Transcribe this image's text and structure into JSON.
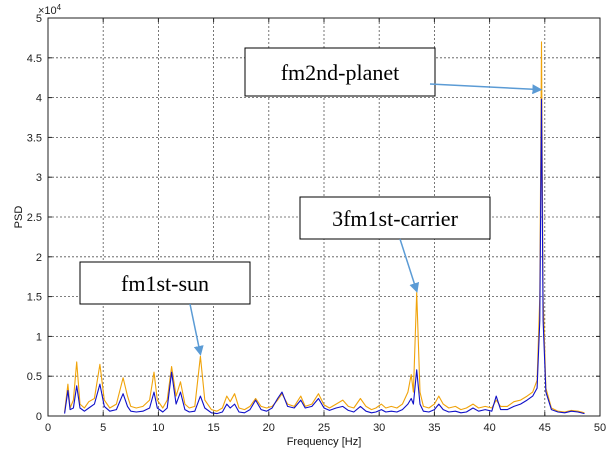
{
  "chart_data": {
    "type": "line",
    "xlabel": "Frequency [Hz]",
    "ylabel": "PSD",
    "exponent_label": "×10",
    "exponent_power": "4",
    "xlim": [
      0,
      50
    ],
    "ylim": [
      0,
      5
    ],
    "xticks": [
      "0",
      "5",
      "10",
      "15",
      "20",
      "25",
      "30",
      "35",
      "40",
      "45",
      "50"
    ],
    "yticks": [
      "0",
      "0.5",
      "1",
      "1.5",
      "2",
      "2.5",
      "3",
      "3.5",
      "4",
      "4.5",
      "5"
    ],
    "grid": true,
    "colors": {
      "orange": "#f0a30a",
      "blue": "#1010c8",
      "arrow": "#5b9bd5"
    },
    "series": [
      {
        "color": "#f0a30a",
        "points": [
          [
            1.5,
            0.05
          ],
          [
            1.8,
            0.4
          ],
          [
            2.0,
            0.1
          ],
          [
            2.3,
            0.2
          ],
          [
            2.6,
            0.68
          ],
          [
            2.9,
            0.15
          ],
          [
            3.3,
            0.1
          ],
          [
            3.7,
            0.18
          ],
          [
            4.2,
            0.22
          ],
          [
            4.7,
            0.65
          ],
          [
            5.1,
            0.2
          ],
          [
            5.6,
            0.1
          ],
          [
            6.2,
            0.15
          ],
          [
            6.8,
            0.48
          ],
          [
            7.2,
            0.25
          ],
          [
            7.5,
            0.12
          ],
          [
            8.0,
            0.1
          ],
          [
            8.6,
            0.12
          ],
          [
            9.2,
            0.2
          ],
          [
            9.6,
            0.55
          ],
          [
            9.9,
            0.2
          ],
          [
            10.4,
            0.1
          ],
          [
            10.8,
            0.2
          ],
          [
            11.2,
            0.62
          ],
          [
            11.6,
            0.25
          ],
          [
            12.0,
            0.43
          ],
          [
            12.4,
            0.15
          ],
          [
            12.8,
            0.1
          ],
          [
            13.3,
            0.12
          ],
          [
            13.8,
            0.75
          ],
          [
            14.2,
            0.2
          ],
          [
            14.8,
            0.08
          ],
          [
            15.3,
            0.06
          ],
          [
            15.8,
            0.1
          ],
          [
            16.2,
            0.25
          ],
          [
            16.5,
            0.18
          ],
          [
            16.9,
            0.28
          ],
          [
            17.3,
            0.1
          ],
          [
            17.8,
            0.08
          ],
          [
            18.3,
            0.12
          ],
          [
            18.8,
            0.22
          ],
          [
            19.3,
            0.12
          ],
          [
            19.8,
            0.1
          ],
          [
            20.3,
            0.12
          ],
          [
            20.8,
            0.2
          ],
          [
            21.2,
            0.28
          ],
          [
            21.7,
            0.15
          ],
          [
            22.3,
            0.12
          ],
          [
            22.9,
            0.25
          ],
          [
            23.3,
            0.12
          ],
          [
            23.9,
            0.15
          ],
          [
            24.5,
            0.28
          ],
          [
            25.0,
            0.14
          ],
          [
            25.5,
            0.1
          ],
          [
            26.1,
            0.15
          ],
          [
            26.7,
            0.2
          ],
          [
            27.2,
            0.12
          ],
          [
            27.7,
            0.1
          ],
          [
            28.3,
            0.22
          ],
          [
            28.8,
            0.12
          ],
          [
            29.3,
            0.08
          ],
          [
            29.7,
            0.1
          ],
          [
            30.2,
            0.15
          ],
          [
            30.6,
            0.1
          ],
          [
            31.1,
            0.12
          ],
          [
            31.6,
            0.1
          ],
          [
            32.1,
            0.15
          ],
          [
            32.6,
            0.3
          ],
          [
            32.9,
            0.52
          ],
          [
            33.1,
            0.3
          ],
          [
            33.4,
            1.55
          ],
          [
            33.7,
            0.3
          ],
          [
            34.0,
            0.12
          ],
          [
            34.5,
            0.1
          ],
          [
            35.0,
            0.15
          ],
          [
            35.4,
            0.25
          ],
          [
            35.8,
            0.15
          ],
          [
            36.3,
            0.1
          ],
          [
            36.9,
            0.12
          ],
          [
            37.4,
            0.08
          ],
          [
            37.9,
            0.1
          ],
          [
            38.5,
            0.15
          ],
          [
            39.0,
            0.1
          ],
          [
            39.6,
            0.12
          ],
          [
            40.2,
            0.1
          ],
          [
            40.6,
            0.2
          ],
          [
            41.0,
            0.12
          ],
          [
            41.6,
            0.12
          ],
          [
            42.2,
            0.18
          ],
          [
            42.8,
            0.2
          ],
          [
            43.4,
            0.25
          ],
          [
            43.9,
            0.3
          ],
          [
            44.3,
            0.45
          ],
          [
            44.55,
            1.5
          ],
          [
            44.7,
            4.7
          ],
          [
            44.85,
            1.5
          ],
          [
            45.1,
            0.35
          ],
          [
            45.6,
            0.1
          ],
          [
            46.2,
            0.06
          ],
          [
            46.8,
            0.05
          ],
          [
            47.4,
            0.07
          ],
          [
            48.0,
            0.06
          ],
          [
            48.6,
            0.04
          ]
        ]
      },
      {
        "color": "#1010c8",
        "points": [
          [
            1.5,
            0.03
          ],
          [
            1.8,
            0.32
          ],
          [
            2.0,
            0.08
          ],
          [
            2.3,
            0.1
          ],
          [
            2.6,
            0.38
          ],
          [
            2.9,
            0.1
          ],
          [
            3.3,
            0.06
          ],
          [
            3.7,
            0.1
          ],
          [
            4.2,
            0.15
          ],
          [
            4.7,
            0.4
          ],
          [
            5.1,
            0.12
          ],
          [
            5.6,
            0.06
          ],
          [
            6.2,
            0.08
          ],
          [
            6.8,
            0.28
          ],
          [
            7.2,
            0.12
          ],
          [
            7.5,
            0.06
          ],
          [
            8.0,
            0.05
          ],
          [
            8.6,
            0.06
          ],
          [
            9.2,
            0.1
          ],
          [
            9.6,
            0.3
          ],
          [
            9.9,
            0.1
          ],
          [
            10.4,
            0.05
          ],
          [
            10.8,
            0.1
          ],
          [
            11.2,
            0.55
          ],
          [
            11.6,
            0.15
          ],
          [
            12.0,
            0.3
          ],
          [
            12.4,
            0.08
          ],
          [
            12.8,
            0.05
          ],
          [
            13.3,
            0.06
          ],
          [
            13.8,
            0.25
          ],
          [
            14.2,
            0.1
          ],
          [
            14.8,
            0.04
          ],
          [
            15.3,
            0.03
          ],
          [
            15.8,
            0.05
          ],
          [
            16.2,
            0.15
          ],
          [
            16.5,
            0.1
          ],
          [
            16.9,
            0.15
          ],
          [
            17.3,
            0.05
          ],
          [
            17.8,
            0.04
          ],
          [
            18.3,
            0.08
          ],
          [
            18.8,
            0.2
          ],
          [
            19.3,
            0.08
          ],
          [
            19.8,
            0.06
          ],
          [
            20.3,
            0.1
          ],
          [
            20.8,
            0.22
          ],
          [
            21.2,
            0.3
          ],
          [
            21.7,
            0.12
          ],
          [
            22.3,
            0.1
          ],
          [
            22.9,
            0.2
          ],
          [
            23.3,
            0.1
          ],
          [
            23.9,
            0.12
          ],
          [
            24.5,
            0.22
          ],
          [
            25.0,
            0.1
          ],
          [
            25.5,
            0.07
          ],
          [
            26.1,
            0.1
          ],
          [
            26.7,
            0.12
          ],
          [
            27.2,
            0.07
          ],
          [
            27.7,
            0.05
          ],
          [
            28.3,
            0.12
          ],
          [
            28.8,
            0.06
          ],
          [
            29.3,
            0.04
          ],
          [
            29.7,
            0.05
          ],
          [
            30.2,
            0.08
          ],
          [
            30.6,
            0.05
          ],
          [
            31.1,
            0.06
          ],
          [
            31.6,
            0.05
          ],
          [
            32.1,
            0.08
          ],
          [
            32.6,
            0.15
          ],
          [
            32.9,
            0.22
          ],
          [
            33.1,
            0.15
          ],
          [
            33.4,
            0.58
          ],
          [
            33.7,
            0.15
          ],
          [
            34.0,
            0.06
          ],
          [
            34.5,
            0.05
          ],
          [
            35.0,
            0.08
          ],
          [
            35.4,
            0.15
          ],
          [
            35.8,
            0.08
          ],
          [
            36.3,
            0.05
          ],
          [
            36.9,
            0.06
          ],
          [
            37.4,
            0.04
          ],
          [
            37.9,
            0.05
          ],
          [
            38.5,
            0.1
          ],
          [
            39.0,
            0.06
          ],
          [
            39.6,
            0.08
          ],
          [
            40.2,
            0.06
          ],
          [
            40.6,
            0.25
          ],
          [
            41.0,
            0.08
          ],
          [
            41.6,
            0.08
          ],
          [
            42.2,
            0.12
          ],
          [
            42.8,
            0.15
          ],
          [
            43.4,
            0.2
          ],
          [
            43.9,
            0.25
          ],
          [
            44.3,
            0.35
          ],
          [
            44.55,
            1.2
          ],
          [
            44.7,
            3.98
          ],
          [
            44.85,
            1.2
          ],
          [
            45.1,
            0.3
          ],
          [
            45.6,
            0.08
          ],
          [
            46.2,
            0.05
          ],
          [
            46.8,
            0.04
          ],
          [
            47.4,
            0.06
          ],
          [
            48.0,
            0.05
          ],
          [
            48.6,
            0.03
          ]
        ]
      }
    ],
    "annotations": [
      {
        "text": "fm2nd-planet",
        "target": [
          44.6,
          4.1
        ]
      },
      {
        "text": "3fm1st-carrier",
        "target": [
          33.4,
          1.57
        ]
      },
      {
        "text": "fm1st-sun",
        "target": [
          13.8,
          0.78
        ]
      }
    ]
  }
}
